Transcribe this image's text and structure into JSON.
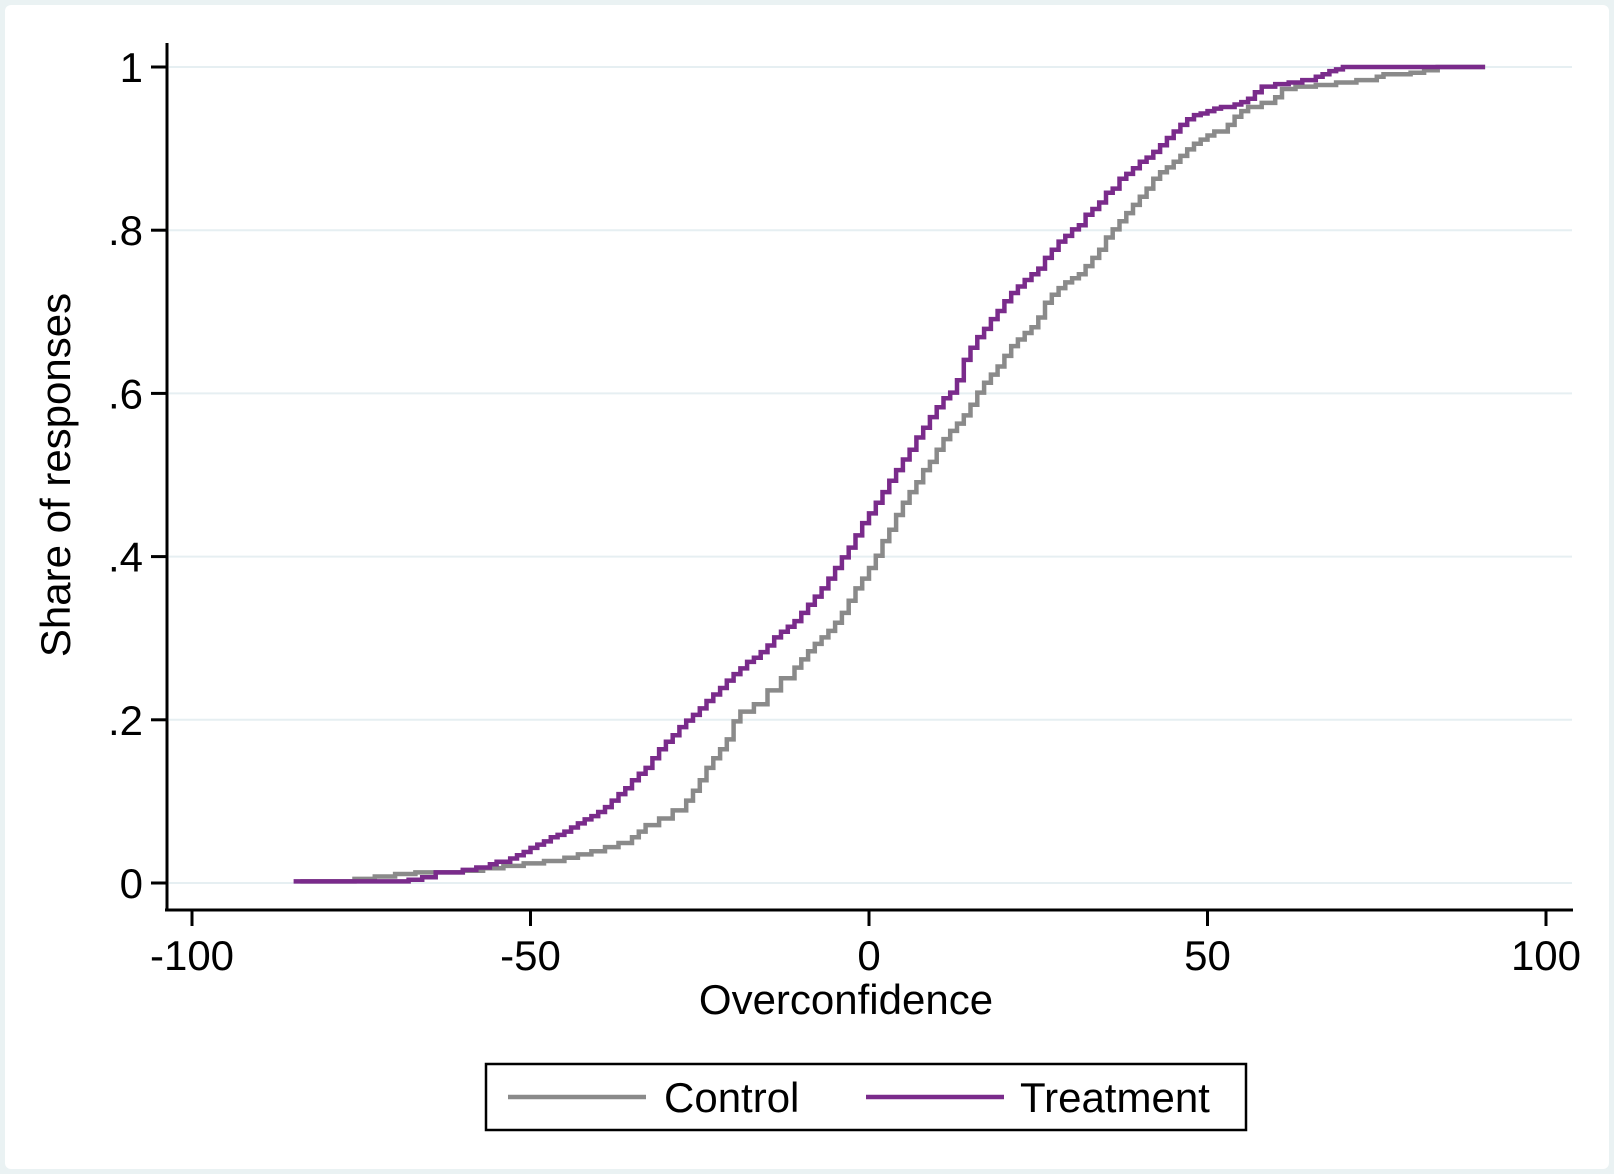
{
  "chart_data": {
    "type": "line",
    "subtype": "ecdf-step",
    "title": "",
    "xlabel": "Overconfidence",
    "ylabel": "Share of responses",
    "xlim": [
      -100,
      100
    ],
    "ylim": [
      0,
      1
    ],
    "x_ticks": {
      "values": [
        -100,
        -50,
        0,
        50,
        100
      ],
      "labels": [
        "-100",
        "-50",
        "0",
        "50",
        "100"
      ]
    },
    "y_ticks": {
      "values": [
        0,
        0.2,
        0.4,
        0.6,
        0.8,
        1
      ],
      "labels": [
        "0",
        ".2",
        ".4",
        ".6",
        ".8",
        "1"
      ]
    },
    "grid": "horizontal-only",
    "legend_position": "bottom-center",
    "colors": {
      "background": "#FFFFFF",
      "frame": "#EAF2F3",
      "grid": "#E6EFF2",
      "axis": "#000000",
      "control": "#8A8A8A",
      "treatment": "#7A2B8B"
    },
    "series": [
      {
        "name": "Control",
        "color": "#8A8A8A",
        "points": [
          [
            -84,
            0.002
          ],
          [
            -76,
            0.005
          ],
          [
            -73,
            0.008
          ],
          [
            -70,
            0.011
          ],
          [
            -67,
            0.013
          ],
          [
            -60,
            0.015
          ],
          [
            -57,
            0.018
          ],
          [
            -54,
            0.021
          ],
          [
            -51,
            0.024
          ],
          [
            -48,
            0.027
          ],
          [
            -45,
            0.031
          ],
          [
            -43,
            0.035
          ],
          [
            -41,
            0.039
          ],
          [
            -39,
            0.044
          ],
          [
            -37,
            0.049
          ],
          [
            -35,
            0.056
          ],
          [
            -34,
            0.063
          ],
          [
            -33,
            0.071
          ],
          [
            -31,
            0.079
          ],
          [
            -29,
            0.089
          ],
          [
            -27,
            0.101
          ],
          [
            -26,
            0.113
          ],
          [
            -25,
            0.126
          ],
          [
            -24,
            0.141
          ],
          [
            -23,
            0.153
          ],
          [
            -22,
            0.164
          ],
          [
            -21,
            0.176
          ],
          [
            -20,
            0.198
          ],
          [
            -19,
            0.21
          ],
          [
            -17,
            0.219
          ],
          [
            -15,
            0.236
          ],
          [
            -13,
            0.251
          ],
          [
            -11,
            0.264
          ],
          [
            -10,
            0.274
          ],
          [
            -9,
            0.284
          ],
          [
            -8,
            0.293
          ],
          [
            -7,
            0.301
          ],
          [
            -6,
            0.309
          ],
          [
            -5,
            0.319
          ],
          [
            -4,
            0.331
          ],
          [
            -3,
            0.346
          ],
          [
            -2,
            0.361
          ],
          [
            -1,
            0.373
          ],
          [
            0,
            0.386
          ],
          [
            1,
            0.401
          ],
          [
            2,
            0.419
          ],
          [
            3,
            0.433
          ],
          [
            4,
            0.451
          ],
          [
            5,
            0.466
          ],
          [
            6,
            0.479
          ],
          [
            7,
            0.491
          ],
          [
            8,
            0.506
          ],
          [
            9,
            0.516
          ],
          [
            10,
            0.531
          ],
          [
            11,
            0.544
          ],
          [
            12,
            0.554
          ],
          [
            13,
            0.563
          ],
          [
            14,
            0.573
          ],
          [
            15,
            0.586
          ],
          [
            16,
            0.601
          ],
          [
            17,
            0.613
          ],
          [
            18,
            0.623
          ],
          [
            19,
            0.633
          ],
          [
            20,
            0.646
          ],
          [
            21,
            0.658
          ],
          [
            22,
            0.666
          ],
          [
            23,
            0.674
          ],
          [
            24,
            0.681
          ],
          [
            25,
            0.693
          ],
          [
            26,
            0.711
          ],
          [
            27,
            0.721
          ],
          [
            28,
            0.729
          ],
          [
            29,
            0.736
          ],
          [
            30,
            0.741
          ],
          [
            31,
            0.746
          ],
          [
            32,
            0.756
          ],
          [
            33,
            0.766
          ],
          [
            34,
            0.776
          ],
          [
            35,
            0.791
          ],
          [
            36,
            0.801
          ],
          [
            37,
            0.811
          ],
          [
            38,
            0.821
          ],
          [
            39,
            0.831
          ],
          [
            40,
            0.841
          ],
          [
            41,
            0.851
          ],
          [
            42,
            0.863
          ],
          [
            43,
            0.871
          ],
          [
            44,
            0.877
          ],
          [
            45,
            0.884
          ],
          [
            46,
            0.891
          ],
          [
            47,
            0.899
          ],
          [
            48,
            0.906
          ],
          [
            49,
            0.911
          ],
          [
            50,
            0.916
          ],
          [
            51,
            0.921
          ],
          [
            53,
            0.929
          ],
          [
            54,
            0.939
          ],
          [
            55,
            0.946
          ],
          [
            56,
            0.951
          ],
          [
            58,
            0.956
          ],
          [
            60,
            0.963
          ],
          [
            61,
            0.973
          ],
          [
            63,
            0.976
          ],
          [
            66,
            0.978
          ],
          [
            69,
            0.981
          ],
          [
            72,
            0.984
          ],
          [
            75,
            0.988
          ],
          [
            76,
            0.991
          ],
          [
            80,
            0.993
          ],
          [
            82,
            0.996
          ],
          [
            84,
            1.0
          ],
          [
            91,
            1.0
          ]
        ]
      },
      {
        "name": "Treatment",
        "color": "#7A2B8B",
        "points": [
          [
            -85,
            0.002
          ],
          [
            -68,
            0.004
          ],
          [
            -66,
            0.007
          ],
          [
            -64,
            0.013
          ],
          [
            -60,
            0.016
          ],
          [
            -58,
            0.019
          ],
          [
            -56,
            0.023
          ],
          [
            -55,
            0.026
          ],
          [
            -53,
            0.03
          ],
          [
            -52,
            0.034
          ],
          [
            -51,
            0.038
          ],
          [
            -50,
            0.043
          ],
          [
            -49,
            0.047
          ],
          [
            -48,
            0.051
          ],
          [
            -47,
            0.056
          ],
          [
            -46,
            0.059
          ],
          [
            -45,
            0.063
          ],
          [
            -44,
            0.068
          ],
          [
            -43,
            0.073
          ],
          [
            -42,
            0.078
          ],
          [
            -41,
            0.082
          ],
          [
            -40,
            0.087
          ],
          [
            -39,
            0.093
          ],
          [
            -38,
            0.101
          ],
          [
            -37,
            0.109
          ],
          [
            -36,
            0.116
          ],
          [
            -35,
            0.126
          ],
          [
            -34,
            0.134
          ],
          [
            -33,
            0.141
          ],
          [
            -32,
            0.153
          ],
          [
            -31,
            0.164
          ],
          [
            -30,
            0.173
          ],
          [
            -29,
            0.181
          ],
          [
            -28,
            0.191
          ],
          [
            -27,
            0.199
          ],
          [
            -26,
            0.206
          ],
          [
            -25,
            0.214
          ],
          [
            -24,
            0.223
          ],
          [
            -23,
            0.231
          ],
          [
            -22,
            0.239
          ],
          [
            -21,
            0.248
          ],
          [
            -20,
            0.256
          ],
          [
            -19,
            0.263
          ],
          [
            -18,
            0.271
          ],
          [
            -17,
            0.276
          ],
          [
            -16,
            0.283
          ],
          [
            -15,
            0.291
          ],
          [
            -14,
            0.301
          ],
          [
            -13,
            0.308
          ],
          [
            -12,
            0.314
          ],
          [
            -11,
            0.321
          ],
          [
            -10,
            0.331
          ],
          [
            -9,
            0.341
          ],
          [
            -8,
            0.351
          ],
          [
            -7,
            0.361
          ],
          [
            -6,
            0.373
          ],
          [
            -5,
            0.386
          ],
          [
            -4,
            0.399
          ],
          [
            -3,
            0.411
          ],
          [
            -2,
            0.426
          ],
          [
            -1,
            0.441
          ],
          [
            0,
            0.453
          ],
          [
            1,
            0.466
          ],
          [
            2,
            0.479
          ],
          [
            3,
            0.493
          ],
          [
            4,
            0.506
          ],
          [
            5,
            0.519
          ],
          [
            6,
            0.531
          ],
          [
            7,
            0.546
          ],
          [
            8,
            0.558
          ],
          [
            9,
            0.571
          ],
          [
            10,
            0.583
          ],
          [
            11,
            0.594
          ],
          [
            12,
            0.601
          ],
          [
            13,
            0.616
          ],
          [
            14,
            0.641
          ],
          [
            15,
            0.656
          ],
          [
            16,
            0.669
          ],
          [
            17,
            0.679
          ],
          [
            18,
            0.691
          ],
          [
            19,
            0.701
          ],
          [
            20,
            0.713
          ],
          [
            21,
            0.723
          ],
          [
            22,
            0.731
          ],
          [
            23,
            0.739
          ],
          [
            24,
            0.746
          ],
          [
            25,
            0.753
          ],
          [
            26,
            0.766
          ],
          [
            27,
            0.776
          ],
          [
            28,
            0.786
          ],
          [
            29,
            0.793
          ],
          [
            30,
            0.801
          ],
          [
            31,
            0.806
          ],
          [
            32,
            0.819
          ],
          [
            33,
            0.826
          ],
          [
            34,
            0.834
          ],
          [
            35,
            0.846
          ],
          [
            36,
            0.851
          ],
          [
            37,
            0.863
          ],
          [
            38,
            0.869
          ],
          [
            39,
            0.876
          ],
          [
            40,
            0.884
          ],
          [
            41,
            0.889
          ],
          [
            42,
            0.896
          ],
          [
            43,
            0.904
          ],
          [
            44,
            0.913
          ],
          [
            45,
            0.921
          ],
          [
            46,
            0.929
          ],
          [
            47,
            0.936
          ],
          [
            48,
            0.941
          ],
          [
            49,
            0.943
          ],
          [
            50,
            0.946
          ],
          [
            51,
            0.949
          ],
          [
            52,
            0.951
          ],
          [
            54,
            0.954
          ],
          [
            55,
            0.957
          ],
          [
            56,
            0.961
          ],
          [
            57,
            0.969
          ],
          [
            58,
            0.976
          ],
          [
            60,
            0.979
          ],
          [
            62,
            0.981
          ],
          [
            64,
            0.984
          ],
          [
            66,
            0.988
          ],
          [
            67,
            0.991
          ],
          [
            68,
            0.995
          ],
          [
            69,
            0.997
          ],
          [
            70,
            1.0
          ],
          [
            91,
            1.0
          ]
        ]
      }
    ],
    "legend": {
      "entries": [
        "Control",
        "Treatment"
      ]
    }
  }
}
